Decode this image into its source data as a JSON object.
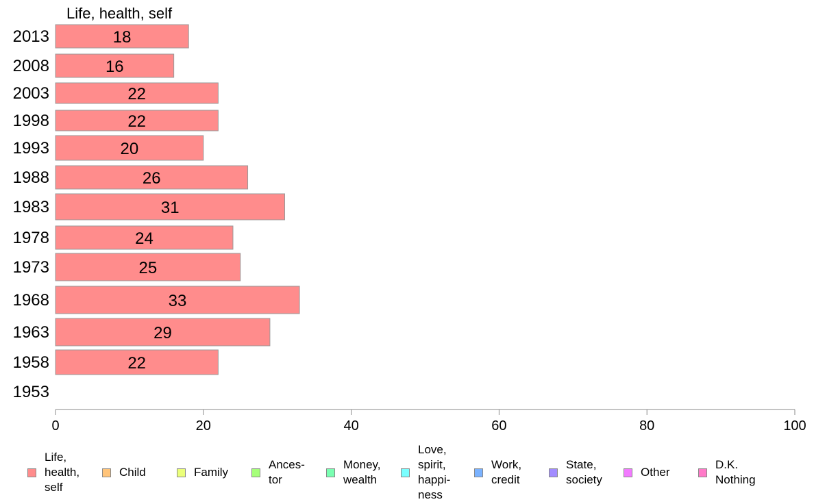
{
  "chart_data": {
    "type": "bar",
    "orientation": "horizontal",
    "series_title": "Life, health, self",
    "categories": [
      "2013",
      "2008",
      "2003",
      "1998",
      "1993",
      "1988",
      "1983",
      "1978",
      "1973",
      "1968",
      "1963",
      "1958",
      "1953"
    ],
    "values": [
      18,
      16,
      22,
      22,
      20,
      26,
      31,
      24,
      25,
      33,
      29,
      22,
      null
    ],
    "xlim": [
      0,
      100
    ],
    "xticks": [
      0,
      20,
      40,
      60,
      80,
      100
    ],
    "bar_color": "#ff8c8c",
    "bar_stroke": "#999999",
    "grid": false,
    "legend_position": "bottom",
    "legend": [
      {
        "label": "Life,\nhealth,\nself",
        "color": "#ff8c8c"
      },
      {
        "label": "Child",
        "color": "#ffc47a"
      },
      {
        "label": "Family",
        "color": "#ebff7a"
      },
      {
        "label": "Ances-\ntor",
        "color": "#a6ff7a"
      },
      {
        "label": "Money,\nwealth",
        "color": "#7affb2"
      },
      {
        "label": "Love,\nspirit,\nhappi-\nness",
        "color": "#7affff"
      },
      {
        "label": "Work,\ncredit",
        "color": "#7ab2ff"
      },
      {
        "label": "State,\nsociety",
        "color": "#a28cff"
      },
      {
        "label": "Other",
        "color": "#f27aff"
      },
      {
        "label": "D.K.\nNothing",
        "color": "#ff7ac8"
      }
    ]
  }
}
